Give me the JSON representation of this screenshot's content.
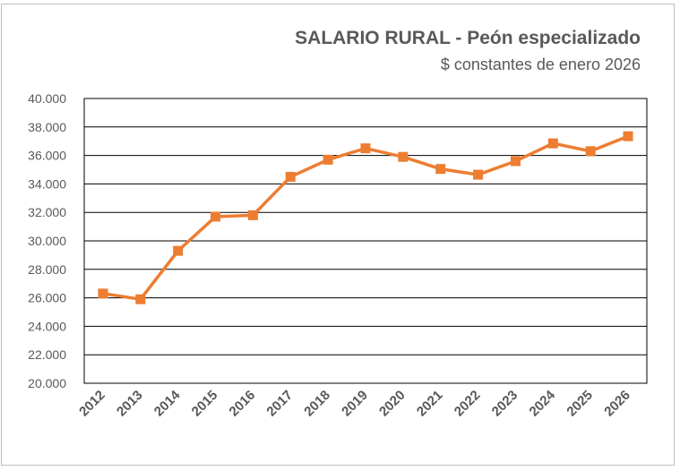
{
  "chart_data": {
    "type": "line",
    "title": "SALARIO RURAL - Peón especializado",
    "subtitle": "$ constantes de enero 2026",
    "xlabel": "",
    "ylabel": "",
    "categories": [
      "2012",
      "2013",
      "2014",
      "2015",
      "2016",
      "2017",
      "2018",
      "2019",
      "2020",
      "2021",
      "2022",
      "2023",
      "2024",
      "2025",
      "2026"
    ],
    "series": [
      {
        "name": "Peón especializado",
        "color": "#ed7d31",
        "values": [
          26300,
          25900,
          29300,
          31700,
          31800,
          34500,
          35700,
          36500,
          35900,
          35050,
          34650,
          35600,
          36850,
          36300,
          37350
        ]
      }
    ],
    "ylim": [
      20000,
      40000
    ],
    "ytick_step": 2000,
    "ytick_labels": [
      "20.000",
      "22.000",
      "24.000",
      "26.000",
      "28.000",
      "30.000",
      "32.000",
      "34.000",
      "36.000",
      "38.000",
      "40.000"
    ],
    "grid": true,
    "legend": "none"
  }
}
